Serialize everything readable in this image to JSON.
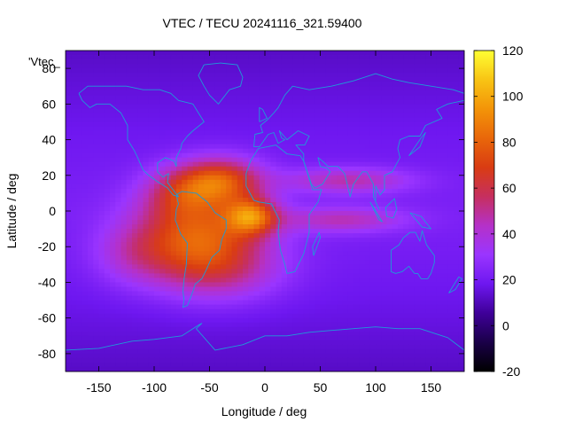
{
  "chart_data": {
    "type": "heatmap",
    "title": "VTEC / TECU 20241116_321.59400",
    "xlabel": "Longitude / deg",
    "ylabel": "Latitude / deg",
    "key_label": "'Vtec_",
    "xlim": [
      -180,
      180
    ],
    "ylim": [
      -90,
      90
    ],
    "xticks": [
      -150,
      -100,
      -50,
      0,
      50,
      100,
      150
    ],
    "yticks": [
      -80,
      -60,
      -40,
      -20,
      0,
      20,
      40,
      60,
      80
    ],
    "colorbar": {
      "min": -20,
      "max": 120,
      "ticks": [
        -20,
        0,
        20,
        40,
        60,
        80,
        100,
        120
      ],
      "palette": [
        "#000000",
        "#1a0048",
        "#3f0099",
        "#6e17f0",
        "#9a35ff",
        "#b531c8",
        "#c62f5f",
        "#d93c13",
        "#e9670a",
        "#f39408",
        "#f8c414",
        "#ffff33"
      ]
    },
    "background_value": 16,
    "anomalies": [
      {
        "name": "equatorial-anomaly-south-america-north",
        "lon": -40,
        "lat": 17,
        "amplitude": 50,
        "sigma_lon": 26,
        "sigma_lat": 9
      },
      {
        "name": "equatorial-anomaly-south-america-south",
        "lon": -60,
        "lat": -15,
        "amplitude": 56,
        "sigma_lon": 40,
        "sigma_lat": 16
      },
      {
        "name": "atlantic-peak-south",
        "lon": -12,
        "lat": -3,
        "amplitude": 52,
        "sigma_lon": 16,
        "sigma_lat": 7
      },
      {
        "name": "caribbean-crest",
        "lon": -75,
        "lat": 10,
        "amplitude": 28,
        "sigma_lon": 25,
        "sigma_lat": 10
      },
      {
        "name": "indian-ocean-tail-north",
        "lon": 75,
        "lat": 17,
        "amplitude": 26,
        "sigma_lon": 40,
        "sigma_lat": 5
      },
      {
        "name": "indian-ocean-tail-south",
        "lon": 70,
        "lat": -5,
        "amplitude": 24,
        "sigma_lon": 40,
        "sigma_lat": 5
      },
      {
        "name": "south-atlantic-spread",
        "lon": -40,
        "lat": -35,
        "amplitude": 20,
        "sigma_lon": 40,
        "sigma_lat": 12
      },
      {
        "name": "south-pacific-tail",
        "lon": -120,
        "lat": -25,
        "amplitude": 14,
        "sigma_lon": 25,
        "sigma_lat": 12
      }
    ],
    "coastlines": [
      {
        "name": "south-america",
        "lonlat": [
          [
            -80,
            9
          ],
          [
            -75,
            11
          ],
          [
            -62,
            10
          ],
          [
            -52,
            5
          ],
          [
            -45,
            -1
          ],
          [
            -35,
            -5
          ],
          [
            -35,
            -10
          ],
          [
            -39,
            -16
          ],
          [
            -41,
            -22
          ],
          [
            -48,
            -26
          ],
          [
            -53,
            -33
          ],
          [
            -57,
            -38
          ],
          [
            -63,
            -41
          ],
          [
            -65,
            -45
          ],
          [
            -68,
            -50
          ],
          [
            -70,
            -53
          ],
          [
            -74,
            -54
          ],
          [
            -73,
            -50
          ],
          [
            -74,
            -45
          ],
          [
            -73,
            -38
          ],
          [
            -71,
            -30
          ],
          [
            -70,
            -18
          ],
          [
            -76,
            -13
          ],
          [
            -81,
            -5
          ],
          [
            -80,
            1
          ],
          [
            -78,
            4
          ],
          [
            -80,
            9
          ]
        ]
      },
      {
        "name": "north-america",
        "lonlat": [
          [
            -168,
            66
          ],
          [
            -160,
            70
          ],
          [
            -140,
            70
          ],
          [
            -125,
            70
          ],
          [
            -110,
            68
          ],
          [
            -95,
            68
          ],
          [
            -85,
            66
          ],
          [
            -78,
            62
          ],
          [
            -65,
            60
          ],
          [
            -60,
            55
          ],
          [
            -55,
            50
          ],
          [
            -65,
            45
          ],
          [
            -70,
            42
          ],
          [
            -75,
            38
          ],
          [
            -76,
            35
          ],
          [
            -80,
            30
          ],
          [
            -80,
            25
          ],
          [
            -82,
            28
          ],
          [
            -90,
            30
          ],
          [
            -97,
            27
          ],
          [
            -97,
            22
          ],
          [
            -92,
            19
          ],
          [
            -87,
            21
          ],
          [
            -88,
            16
          ],
          [
            -83,
            12
          ],
          [
            -78,
            8
          ],
          [
            -83,
            9
          ],
          [
            -88,
            13
          ],
          [
            -96,
            16
          ],
          [
            -105,
            20
          ],
          [
            -110,
            23
          ],
          [
            -115,
            30
          ],
          [
            -118,
            34
          ],
          [
            -124,
            40
          ],
          [
            -124,
            48
          ],
          [
            -130,
            55
          ],
          [
            -140,
            60
          ],
          [
            -152,
            60
          ],
          [
            -158,
            58
          ],
          [
            -165,
            62
          ],
          [
            -168,
            66
          ]
        ]
      },
      {
        "name": "greenland",
        "lonlat": [
          [
            -55,
            82
          ],
          [
            -40,
            83
          ],
          [
            -25,
            82
          ],
          [
            -20,
            75
          ],
          [
            -22,
            70
          ],
          [
            -32,
            68
          ],
          [
            -42,
            60
          ],
          [
            -50,
            65
          ],
          [
            -55,
            70
          ],
          [
            -60,
            76
          ],
          [
            -55,
            82
          ]
        ]
      },
      {
        "name": "africa",
        "lonlat": [
          [
            -17,
            21
          ],
          [
            -13,
            28
          ],
          [
            -6,
            35
          ],
          [
            10,
            37
          ],
          [
            20,
            32
          ],
          [
            32,
            31
          ],
          [
            35,
            28
          ],
          [
            43,
            12
          ],
          [
            51,
            12
          ],
          [
            48,
            5
          ],
          [
            40,
            -2
          ],
          [
            40,
            -12
          ],
          [
            35,
            -24
          ],
          [
            27,
            -34
          ],
          [
            20,
            -35
          ],
          [
            18,
            -30
          ],
          [
            14,
            -22
          ],
          [
            12,
            -12
          ],
          [
            13,
            -5
          ],
          [
            9,
            0
          ],
          [
            6,
            4
          ],
          [
            -5,
            5
          ],
          [
            -10,
            6
          ],
          [
            -17,
            14
          ],
          [
            -17,
            21
          ]
        ]
      },
      {
        "name": "eurasia",
        "lonlat": [
          [
            -10,
            36
          ],
          [
            -9,
            43
          ],
          [
            -2,
            44
          ],
          [
            -4,
            48
          ],
          [
            2,
            51
          ],
          [
            8,
            55
          ],
          [
            12,
            58
          ],
          [
            18,
            65
          ],
          [
            25,
            70
          ],
          [
            40,
            68
          ],
          [
            60,
            70
          ],
          [
            80,
            73
          ],
          [
            100,
            77
          ],
          [
            115,
            74
          ],
          [
            130,
            72
          ],
          [
            150,
            70
          ],
          [
            170,
            68
          ],
          [
            180,
            66
          ]
        ]
      },
      {
        "name": "asia-south",
        "lonlat": [
          [
            180,
            62
          ],
          [
            165,
            60
          ],
          [
            155,
            57
          ],
          [
            160,
            52
          ],
          [
            145,
            48
          ],
          [
            140,
            42
          ],
          [
            130,
            42
          ],
          [
            122,
            40
          ],
          [
            120,
            35
          ],
          [
            122,
            30
          ],
          [
            115,
            22
          ],
          [
            108,
            20
          ],
          [
            108,
            12
          ],
          [
            104,
            9
          ],
          [
            100,
            14
          ],
          [
            100,
            5
          ],
          [
            103,
            1
          ],
          [
            98,
            8
          ],
          [
            98,
            15
          ],
          [
            92,
            22
          ],
          [
            88,
            22
          ],
          [
            80,
            15
          ],
          [
            77,
            8
          ],
          [
            72,
            21
          ],
          [
            66,
            25
          ],
          [
            57,
            25
          ],
          [
            52,
            28
          ],
          [
            48,
            30
          ],
          [
            50,
            25
          ],
          [
            56,
            24
          ],
          [
            59,
            22
          ],
          [
            52,
            15
          ],
          [
            45,
            13
          ],
          [
            42,
            15
          ],
          [
            35,
            28
          ],
          [
            35,
            32
          ],
          [
            28,
            37
          ],
          [
            36,
            37
          ],
          [
            40,
            42
          ],
          [
            30,
            45
          ],
          [
            22,
            41
          ],
          [
            20,
            40
          ],
          [
            13,
            45
          ],
          [
            15,
            41
          ],
          [
            18,
            40
          ],
          [
            12,
            38
          ],
          [
            8,
            44
          ],
          [
            3,
            43
          ],
          [
            -5,
            36
          ],
          [
            -10,
            36
          ]
        ]
      },
      {
        "name": "australia",
        "lonlat": [
          [
            114,
            -22
          ],
          [
            114,
            -34
          ],
          [
            118,
            -35
          ],
          [
            124,
            -34
          ],
          [
            130,
            -31
          ],
          [
            135,
            -35
          ],
          [
            138,
            -35
          ],
          [
            141,
            -38
          ],
          [
            147,
            -38
          ],
          [
            150,
            -35
          ],
          [
            153,
            -29
          ],
          [
            153,
            -25
          ],
          [
            146,
            -19
          ],
          [
            142,
            -11
          ],
          [
            140,
            -17
          ],
          [
            136,
            -12
          ],
          [
            131,
            -12
          ],
          [
            125,
            -15
          ],
          [
            121,
            -19
          ],
          [
            114,
            -22
          ]
        ]
      },
      {
        "name": "antarctica",
        "lonlat": [
          [
            -180,
            -78
          ],
          [
            -150,
            -77
          ],
          [
            -120,
            -73
          ],
          [
            -100,
            -72
          ],
          [
            -75,
            -70
          ],
          [
            -60,
            -64
          ],
          [
            -57,
            -63
          ],
          [
            -62,
            -66
          ],
          [
            -45,
            -78
          ],
          [
            -20,
            -75
          ],
          [
            0,
            -70
          ],
          [
            20,
            -70
          ],
          [
            40,
            -68
          ],
          [
            60,
            -67
          ],
          [
            80,
            -66
          ],
          [
            100,
            -65
          ],
          [
            120,
            -66
          ],
          [
            140,
            -66
          ],
          [
            165,
            -71
          ],
          [
            180,
            -78
          ]
        ]
      },
      {
        "name": "borneo",
        "lonlat": [
          [
            109,
            2
          ],
          [
            117,
            7
          ],
          [
            119,
            1
          ],
          [
            116,
            -4
          ],
          [
            110,
            -3
          ],
          [
            109,
            2
          ]
        ]
      },
      {
        "name": "sumatra",
        "lonlat": [
          [
            95,
            5
          ],
          [
            106,
            -6
          ],
          [
            103,
            -5
          ],
          [
            95,
            5
          ]
        ]
      },
      {
        "name": "new-guinea",
        "lonlat": [
          [
            131,
            -1
          ],
          [
            141,
            -3
          ],
          [
            150,
            -10
          ],
          [
            142,
            -9
          ],
          [
            131,
            -1
          ]
        ]
      },
      {
        "name": "madagascar",
        "lonlat": [
          [
            44,
            -25
          ],
          [
            50,
            -15
          ],
          [
            49,
            -12
          ],
          [
            43,
            -20
          ],
          [
            44,
            -25
          ]
        ]
      },
      {
        "name": "japan",
        "lonlat": [
          [
            130,
            31
          ],
          [
            141,
            41
          ],
          [
            145,
            44
          ],
          [
            140,
            36
          ],
          [
            130,
            31
          ]
        ]
      },
      {
        "name": "new-zealand",
        "lonlat": [
          [
            166,
            -46
          ],
          [
            175,
            -37
          ],
          [
            178,
            -38
          ],
          [
            172,
            -44
          ],
          [
            166,
            -46
          ]
        ]
      },
      {
        "name": "great-britain",
        "lonlat": [
          [
            -5,
            50
          ],
          [
            2,
            52
          ],
          [
            -2,
            57
          ],
          [
            -5,
            58
          ],
          [
            -5,
            50
          ]
        ]
      }
    ]
  }
}
